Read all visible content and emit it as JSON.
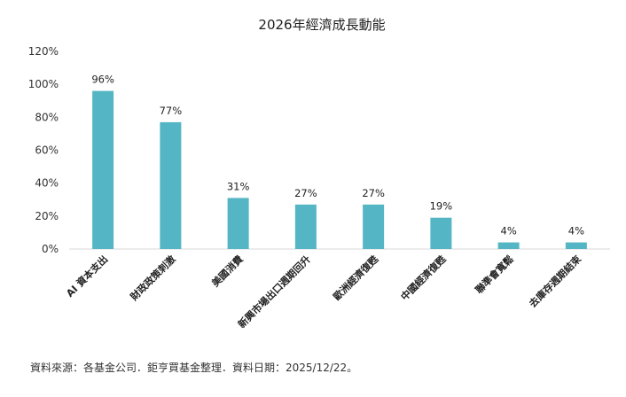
{
  "chart_data": {
    "type": "bar",
    "title": "2026年經濟成長動能",
    "categories": [
      "AI 資本支出",
      "財政政策刺激",
      "美國消費",
      "新興市場出口週期回升",
      "歐洲經濟復甦",
      "中國經濟復甦",
      "聯準會寬鬆",
      "去庫存週期結束"
    ],
    "values": [
      96,
      77,
      31,
      27,
      27,
      19,
      4,
      4
    ],
    "data_labels": [
      "96%",
      "77%",
      "31%",
      "27%",
      "27%",
      "19%",
      "4%",
      "4%"
    ],
    "ylim": [
      0,
      120
    ],
    "yticks": [
      0,
      20,
      40,
      60,
      80,
      100,
      120
    ],
    "ytick_labels": [
      "0%",
      "20%",
      "40%",
      "60%",
      "80%",
      "100%",
      "120%"
    ],
    "xlabel": "",
    "ylabel": "",
    "grid": false,
    "bar_color": "#54b6c4"
  },
  "footer": {
    "source": "資料來源：各基金公司．鉅亨買基金整理．資料日期：2025/12/22。"
  }
}
